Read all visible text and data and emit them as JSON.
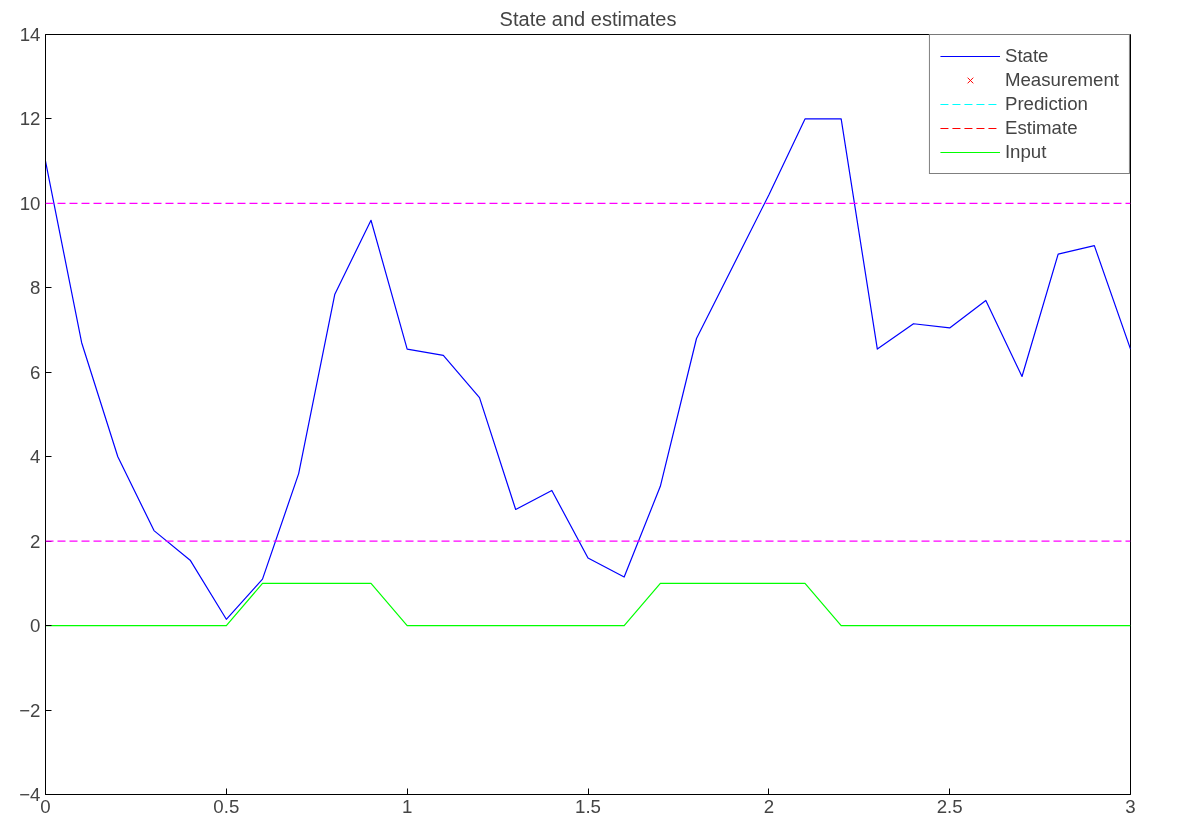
{
  "chart_data": {
    "type": "line",
    "title": "State and estimates",
    "x": [
      0,
      0.1,
      0.2,
      0.3,
      0.4,
      0.5,
      0.6,
      0.7,
      0.8,
      0.9,
      1.0,
      1.1,
      1.2,
      1.3,
      1.4,
      1.5,
      1.6,
      1.7,
      1.8,
      1.9,
      2.0,
      2.1,
      2.2,
      2.3,
      2.4,
      2.5,
      2.6,
      2.7,
      2.8,
      2.9,
      3.0
    ],
    "series": [
      {
        "name": "State",
        "color": "#0000ff",
        "line_style": "solid",
        "values": [
          11.0,
          6.7,
          4.0,
          2.25,
          1.55,
          0.15,
          1.1,
          3.6,
          7.85,
          9.6,
          6.55,
          6.4,
          5.4,
          2.75,
          3.2,
          1.6,
          1.15,
          3.3,
          6.8,
          8.5,
          10.2,
          12.0,
          12.0,
          6.55,
          7.15,
          7.05,
          7.7,
          5.9,
          8.8,
          9.0,
          6.55
        ]
      },
      {
        "name": "Measurement",
        "type": "scatter",
        "marker": "cross",
        "color": "#ff0000",
        "values": [
          null,
          null,
          null,
          null,
          null,
          null,
          null,
          null,
          null,
          null,
          null,
          null,
          null,
          null,
          null,
          null,
          null,
          null,
          null,
          null,
          null,
          null,
          null,
          null,
          null,
          null,
          null,
          null,
          null,
          null,
          null
        ]
      },
      {
        "name": "Prediction",
        "color": "#00ffff",
        "line_style": "dashed",
        "values": [
          null,
          null,
          null,
          null,
          null,
          null,
          null,
          null,
          null,
          null,
          null,
          null,
          null,
          null,
          null,
          null,
          null,
          null,
          null,
          null,
          null,
          null,
          null,
          null,
          null,
          null,
          null,
          null,
          null,
          null,
          null
        ]
      },
      {
        "name": "Estimate",
        "color": "#ff0000",
        "line_style": "dashed",
        "values": [
          null,
          null,
          null,
          null,
          null,
          null,
          null,
          null,
          null,
          null,
          null,
          null,
          null,
          null,
          null,
          null,
          null,
          null,
          null,
          null,
          null,
          null,
          null,
          null,
          null,
          null,
          null,
          null,
          null,
          null,
          null
        ]
      },
      {
        "name": "Input",
        "color": "#00ff00",
        "line_style": "solid",
        "values": [
          0,
          0,
          0,
          0,
          0,
          0,
          1,
          1,
          1,
          1,
          0,
          0,
          0,
          0,
          0,
          0,
          0,
          1,
          1,
          1,
          1,
          1,
          0,
          0,
          0,
          0,
          0,
          0,
          0,
          0,
          0
        ]
      }
    ],
    "ref_lines": [
      {
        "axis": "y",
        "value": 10,
        "color": "#ff00ff",
        "line_style": "dashed"
      },
      {
        "axis": "y",
        "value": 2,
        "color": "#ff00ff",
        "line_style": "dashed"
      }
    ],
    "xlim": [
      0,
      3
    ],
    "xticks": [
      0,
      0.5,
      1,
      1.5,
      2,
      2.5,
      3
    ],
    "ylim": [
      -4,
      14
    ],
    "yticks": [
      -4,
      -2,
      0,
      2,
      4,
      6,
      8,
      10,
      12,
      14
    ],
    "grid": false,
    "legend": "top right"
  }
}
